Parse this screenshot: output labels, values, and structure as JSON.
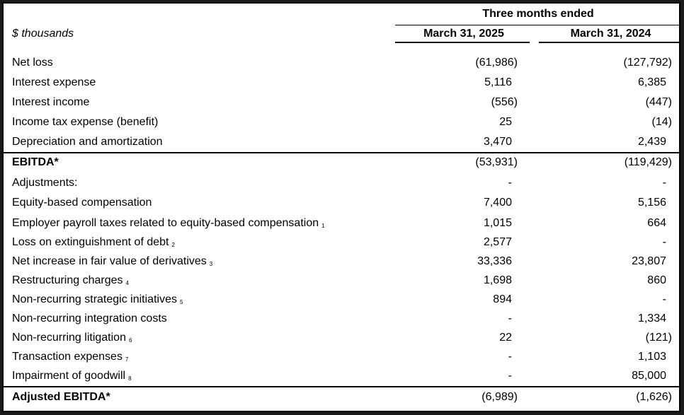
{
  "header": {
    "group_title": "Three months ended",
    "units": "$ thousands",
    "col1": "March 31, 2025",
    "col2": "March 31, 2024"
  },
  "rows": [
    {
      "label": "Net loss",
      "fn": "",
      "v1": "(61,986)",
      "v2": "(127,792)"
    },
    {
      "label": "Interest expense",
      "fn": "",
      "v1": "5,116",
      "v2": "6,385"
    },
    {
      "label": "Interest income",
      "fn": "",
      "v1": "(556)",
      "v2": "(447)"
    },
    {
      "label": "Income tax expense (benefit)",
      "fn": "",
      "v1": "25",
      "v2": "(14)"
    },
    {
      "label": "Depreciation and amortization",
      "fn": "",
      "v1": "3,470",
      "v2": "2,439"
    },
    {
      "label": "EBITDA*",
      "fn": "",
      "v1": "(53,931)",
      "v2": "(119,429)"
    },
    {
      "label": "Adjustments:",
      "fn": "",
      "v1": "-",
      "v2": "-"
    },
    {
      "label": "Equity-based compensation",
      "fn": "",
      "v1": "7,400",
      "v2": "5,156"
    },
    {
      "label": "Employer payroll taxes related to equity-based compensation",
      "fn": "1",
      "v1": "1,015",
      "v2": "664"
    },
    {
      "label": "Loss on extinguishment of debt",
      "fn": "2",
      "v1": "2,577",
      "v2": "-"
    },
    {
      "label": "Net increase in fair value of derivatives",
      "fn": "3",
      "v1": "33,336",
      "v2": "23,807"
    },
    {
      "label": "Restructuring charges",
      "fn": "4",
      "v1": "1,698",
      "v2": "860"
    },
    {
      "label": "Non-recurring strategic initiatives",
      "fn": "5",
      "v1": "894",
      "v2": "-"
    },
    {
      "label": "Non-recurring integration costs",
      "fn": "",
      "v1": "-",
      "v2": "1,334"
    },
    {
      "label": "Non-recurring litigation",
      "fn": "6",
      "v1": "22",
      "v2": "(121)"
    },
    {
      "label": "Transaction expenses",
      "fn": "7",
      "v1": "-",
      "v2": "1,103"
    },
    {
      "label": "Impairment of goodwill",
      "fn": "8",
      "v1": "-",
      "v2": "85,000"
    },
    {
      "label": "Adjusted EBITDA*",
      "fn": "",
      "v1": "(6,989)",
      "v2": "(1,626)"
    }
  ]
}
